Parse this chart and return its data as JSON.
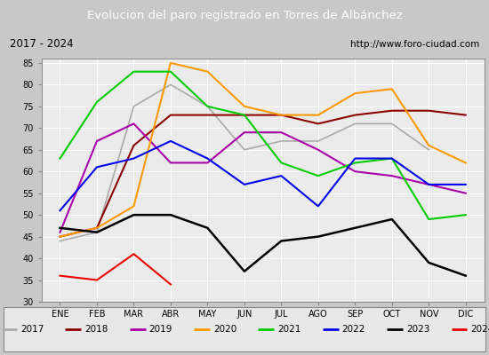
{
  "title": "Evolucion del paro registrado en Torres de Albánchez",
  "subtitle_left": "2017 - 2024",
  "subtitle_right": "http://www.foro-ciudad.com",
  "months": [
    "ENE",
    "FEB",
    "MAR",
    "ABR",
    "MAY",
    "JUN",
    "JUL",
    "AGO",
    "SEP",
    "OCT",
    "NOV",
    "DIC"
  ],
  "ylim": [
    30,
    86
  ],
  "yticks": [
    30,
    35,
    40,
    45,
    50,
    55,
    60,
    65,
    70,
    75,
    80,
    85
  ],
  "series": {
    "2017": {
      "values": [
        44,
        46,
        75,
        80,
        75,
        65,
        67,
        67,
        71,
        71,
        65,
        null
      ],
      "color": "#aaaaaa",
      "linewidth": 1.2
    },
    "2018": {
      "values": [
        45,
        47,
        66,
        73,
        73,
        73,
        73,
        71,
        73,
        74,
        74,
        73
      ],
      "color": "#8b0000",
      "linewidth": 1.5
    },
    "2019": {
      "values": [
        46,
        67,
        71,
        62,
        62,
        69,
        69,
        65,
        60,
        59,
        57,
        55
      ],
      "color": "#aa00aa",
      "linewidth": 1.5
    },
    "2020": {
      "values": [
        45,
        47,
        52,
        85,
        83,
        75,
        73,
        73,
        78,
        79,
        66,
        62
      ],
      "color": "#ff9900",
      "linewidth": 1.5
    },
    "2021": {
      "values": [
        63,
        76,
        83,
        83,
        75,
        73,
        62,
        59,
        62,
        63,
        49,
        50
      ],
      "color": "#00cc00",
      "linewidth": 1.5
    },
    "2022": {
      "values": [
        51,
        61,
        63,
        67,
        63,
        57,
        59,
        52,
        63,
        63,
        57,
        57
      ],
      "color": "#0000ee",
      "linewidth": 1.5
    },
    "2023": {
      "values": [
        47,
        46,
        50,
        50,
        47,
        37,
        44,
        45,
        47,
        49,
        39,
        36
      ],
      "color": "#000000",
      "linewidth": 1.8
    },
    "2024": {
      "values": [
        36,
        35,
        41,
        34,
        null,
        null,
        null,
        null,
        null,
        null,
        null,
        null
      ],
      "color": "#ee0000",
      "linewidth": 1.5
    }
  },
  "title_bg_color": "#3a6abf",
  "title_font_color": "#ffffff",
  "subtitle_bg_color": "#e0e0e0",
  "plot_bg_color": "#ebebeb",
  "grid_color": "#ffffff",
  "legend_bg_color": "#e8e8e8",
  "outer_bg_color": "#c8c8c8"
}
